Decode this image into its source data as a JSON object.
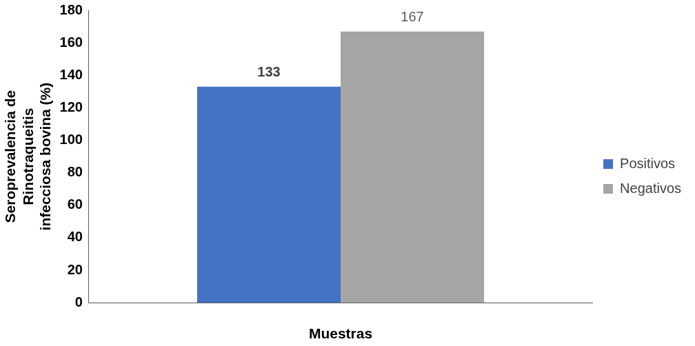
{
  "chart_data": {
    "type": "bar",
    "xlabel": "Muestras",
    "ylabel": "Seroprevalencia de Rinotraqueitis infecciosa bovina (%)",
    "categories": [
      null
    ],
    "series": [
      {
        "name": "Positivos",
        "color": "#4472c4",
        "values": [
          133
        ]
      },
      {
        "name": "Negativos",
        "color": "#a5a5a5",
        "values": [
          167
        ]
      }
    ],
    "ylim": [
      0,
      180
    ],
    "yticks": [
      0,
      20,
      40,
      60,
      80,
      100,
      120,
      140,
      160,
      180
    ],
    "grid": false,
    "legend": "right",
    "data_labels": true
  }
}
